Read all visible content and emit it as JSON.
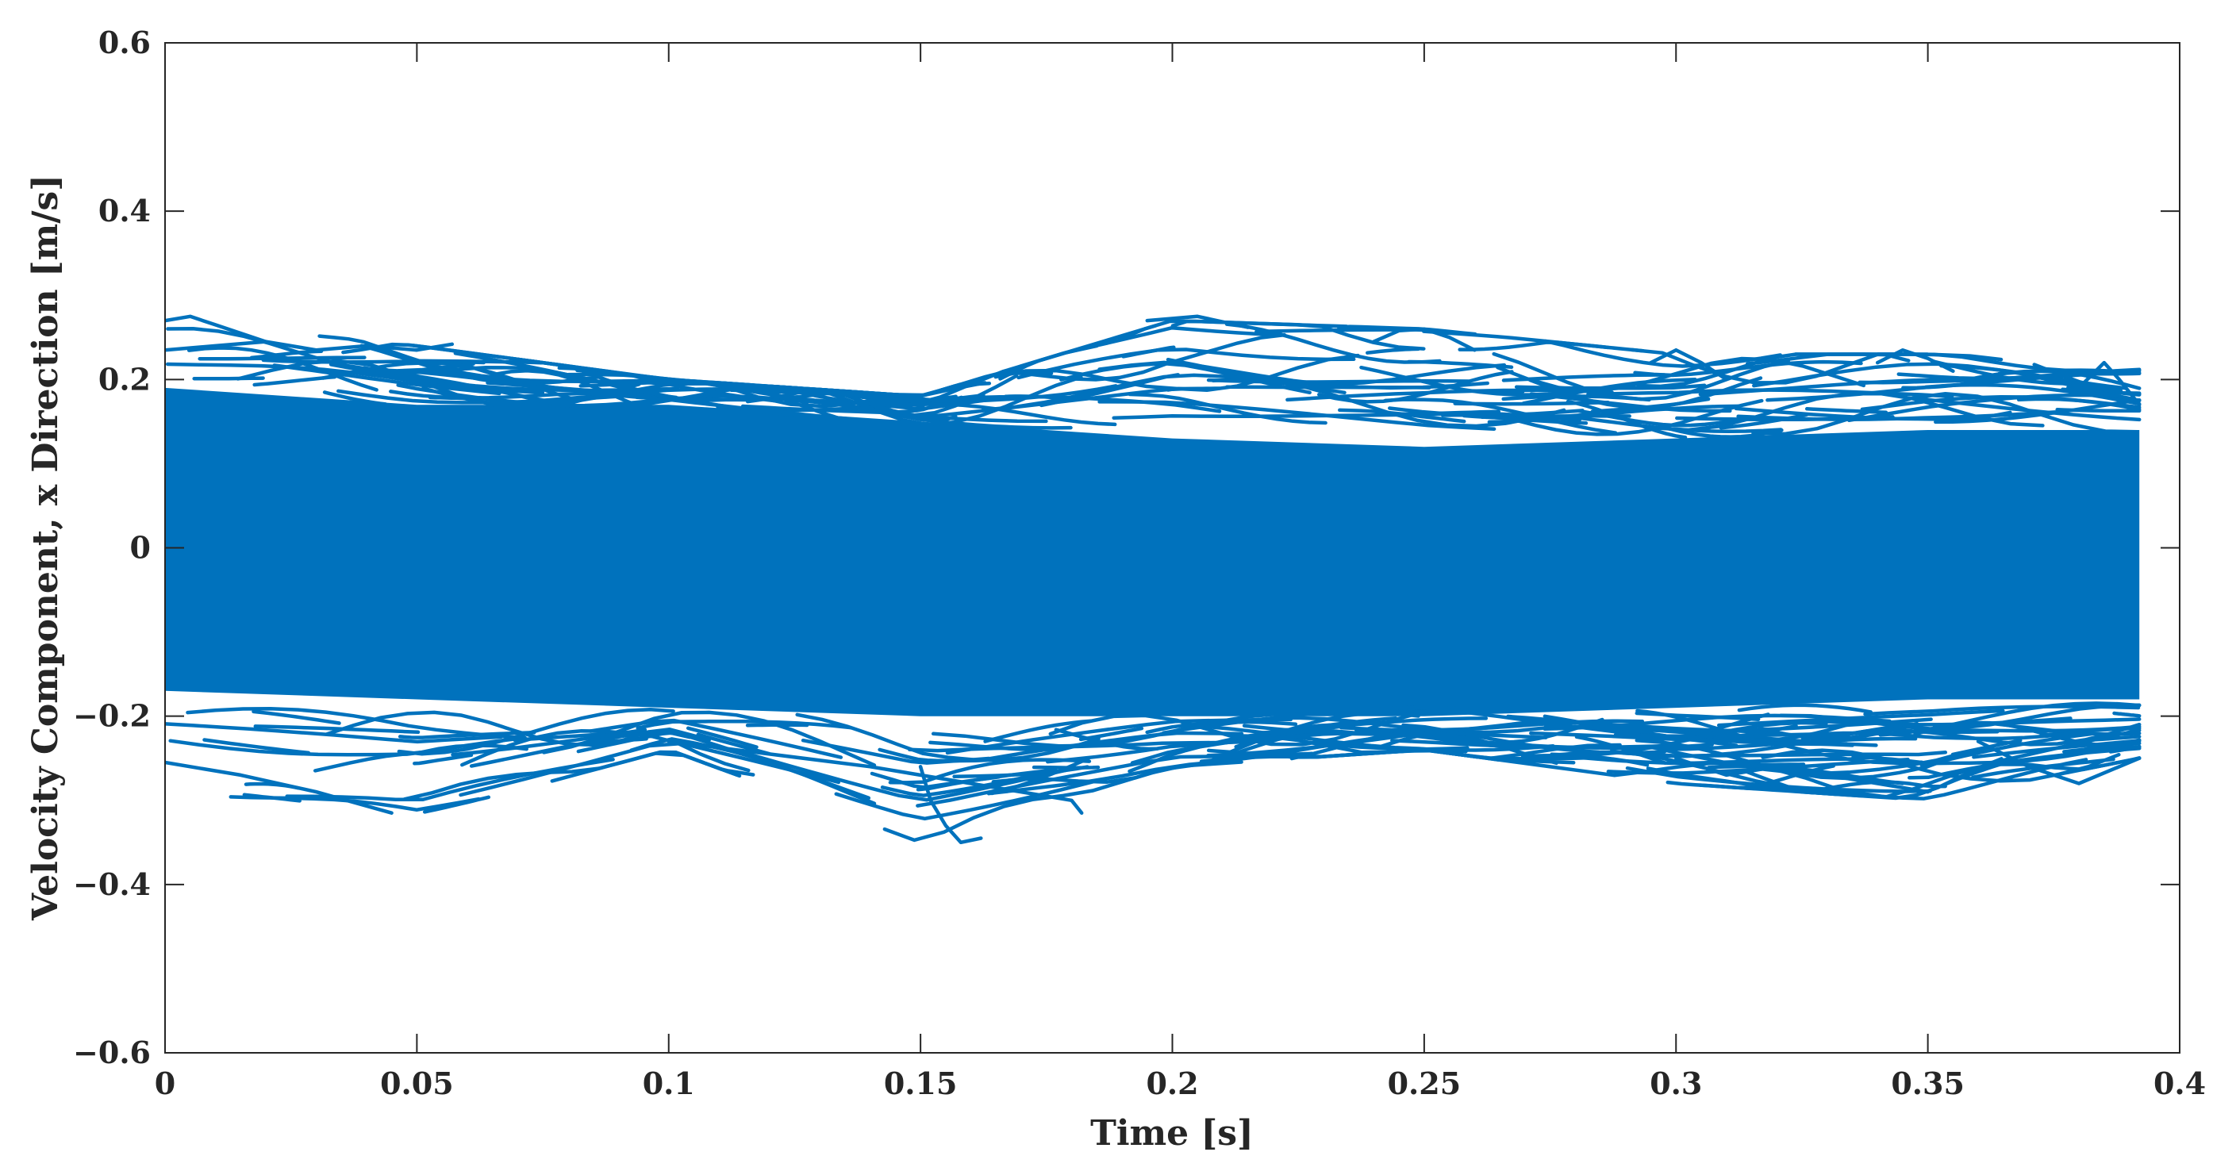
{
  "chart_data": {
    "type": "line",
    "title": "",
    "xlabel": "Time [s]",
    "ylabel": "Velocity Component, x Direction [m/s]",
    "xlim": [
      0,
      0.4
    ],
    "ylim": [
      -0.6,
      0.6
    ],
    "x_ticks": [
      0,
      0.05,
      0.1,
      0.15,
      0.2,
      0.25,
      0.3,
      0.35,
      0.4
    ],
    "x_tick_labels": [
      "0",
      "0.05",
      "0.1",
      "0.15",
      "0.2",
      "0.25",
      "0.3",
      "0.35",
      "0.4"
    ],
    "y_ticks": [
      0.6,
      0.4,
      0.2,
      0,
      -0.2,
      -0.4,
      -0.6
    ],
    "y_tick_labels": [
      "0.6",
      "0.4",
      "0.2",
      "0",
      "−0.2",
      "−0.4",
      "−0.6"
    ],
    "grid": false,
    "series_color": "#0072BD",
    "time_range": [
      0,
      0.392
    ],
    "dense_band": {
      "x": [
        0,
        0.05,
        0.1,
        0.15,
        0.2,
        0.25,
        0.3,
        0.35,
        0.392
      ],
      "upper": [
        0.19,
        0.17,
        0.17,
        0.15,
        0.13,
        0.12,
        0.13,
        0.14,
        0.14
      ],
      "lower": [
        -0.17,
        -0.18,
        -0.19,
        -0.2,
        -0.2,
        -0.2,
        -0.19,
        -0.18,
        -0.18
      ]
    },
    "envelope": {
      "x": [
        0,
        0.05,
        0.1,
        0.15,
        0.2,
        0.25,
        0.3,
        0.35,
        0.392
      ],
      "max": [
        0.27,
        0.24,
        0.2,
        0.18,
        0.27,
        0.26,
        0.23,
        0.23,
        0.22
      ],
      "min": [
        -0.29,
        -0.32,
        -0.24,
        -0.35,
        -0.26,
        -0.24,
        -0.28,
        -0.3,
        -0.25
      ]
    },
    "outlier_traces": [
      {
        "x": [
          0.0,
          0.005,
          0.01,
          0.015,
          0.02
        ],
        "y": [
          0.27,
          0.275,
          0.265,
          0.255,
          0.245
        ]
      },
      {
        "x": [
          0.0,
          0.01,
          0.02,
          0.03,
          0.04,
          0.05,
          0.057
        ],
        "y": [
          0.235,
          0.24,
          0.245,
          0.235,
          0.24,
          0.235,
          0.242
        ]
      },
      {
        "x": [
          0.195,
          0.205,
          0.215
        ],
        "y": [
          0.27,
          0.275,
          0.262
        ]
      },
      {
        "x": [
          0.24,
          0.245,
          0.25,
          0.255,
          0.26
        ],
        "y": [
          0.245,
          0.258,
          0.26,
          0.25,
          0.235
        ]
      },
      {
        "x": [
          0.15,
          0.152,
          0.155,
          0.158,
          0.162
        ],
        "y": [
          -0.26,
          -0.3,
          -0.33,
          -0.35,
          -0.345
        ]
      },
      {
        "x": [
          0.0,
          0.015,
          0.03,
          0.045
        ],
        "y": [
          -0.255,
          -0.27,
          -0.29,
          -0.315
        ]
      },
      {
        "x": [
          0.1,
          0.12,
          0.14,
          0.16,
          0.18,
          0.182
        ],
        "y": [
          -0.23,
          -0.245,
          -0.26,
          -0.28,
          -0.3,
          -0.315
        ]
      },
      {
        "x": [
          0.3,
          0.31,
          0.32,
          0.33,
          0.34,
          0.35
        ],
        "y": [
          -0.25,
          -0.27,
          -0.26,
          -0.27,
          -0.28,
          -0.29
        ]
      },
      {
        "x": [
          0.295,
          0.3,
          0.305,
          0.31
        ],
        "y": [
          0.22,
          0.235,
          0.22,
          0.2
        ]
      },
      {
        "x": [
          0.34,
          0.345,
          0.35,
          0.355
        ],
        "y": [
          0.22,
          0.235,
          0.225,
          0.21
        ]
      },
      {
        "x": [
          0.38,
          0.385,
          0.388,
          0.392
        ],
        "y": [
          0.19,
          0.22,
          0.2,
          0.17
        ]
      },
      {
        "x": [
          0.36,
          0.37,
          0.38,
          0.392
        ],
        "y": [
          -0.23,
          -0.26,
          -0.28,
          -0.25
        ]
      }
    ]
  }
}
